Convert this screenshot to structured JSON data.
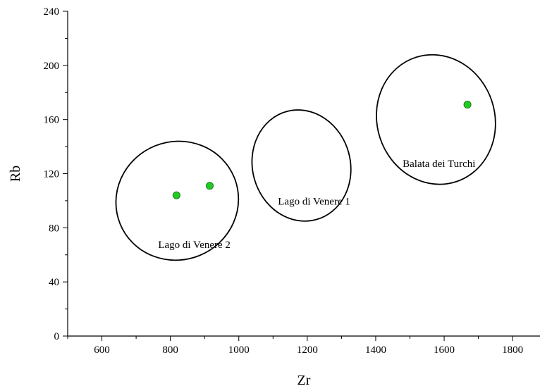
{
  "chart_data": {
    "type": "scatter",
    "xlabel": "Zr",
    "ylabel": "Rb",
    "xlim": [
      500,
      1880
    ],
    "ylim": [
      0,
      240
    ],
    "x_ticks": [
      600,
      800,
      1000,
      1200,
      1400,
      1600,
      1800
    ],
    "y_ticks": [
      0,
      40,
      80,
      120,
      160,
      200,
      240
    ],
    "grid": false,
    "point_color": "#22cc22",
    "points": [
      {
        "x": 818,
        "y": 104
      },
      {
        "x": 915,
        "y": 111
      },
      {
        "x": 1668,
        "y": 171
      }
    ],
    "regions": [
      {
        "label": "Lago di Venere 2",
        "cx": 820,
        "cy": 100,
        "rx": 180,
        "ry": 19,
        "angle_deg": -22,
        "label_x": 870,
        "label_y": 65
      },
      {
        "label": "Lago di Venere 1",
        "cx": 1183,
        "cy": 126,
        "rx": 143,
        "ry": 18,
        "angle_deg": -15,
        "label_x": 1220,
        "label_y": 97
      },
      {
        "label": "Balata dei Turchi",
        "cx": 1576,
        "cy": 160,
        "rx": 172,
        "ry": 21,
        "angle_deg": -18,
        "label_x": 1585,
        "label_y": 125
      }
    ]
  }
}
